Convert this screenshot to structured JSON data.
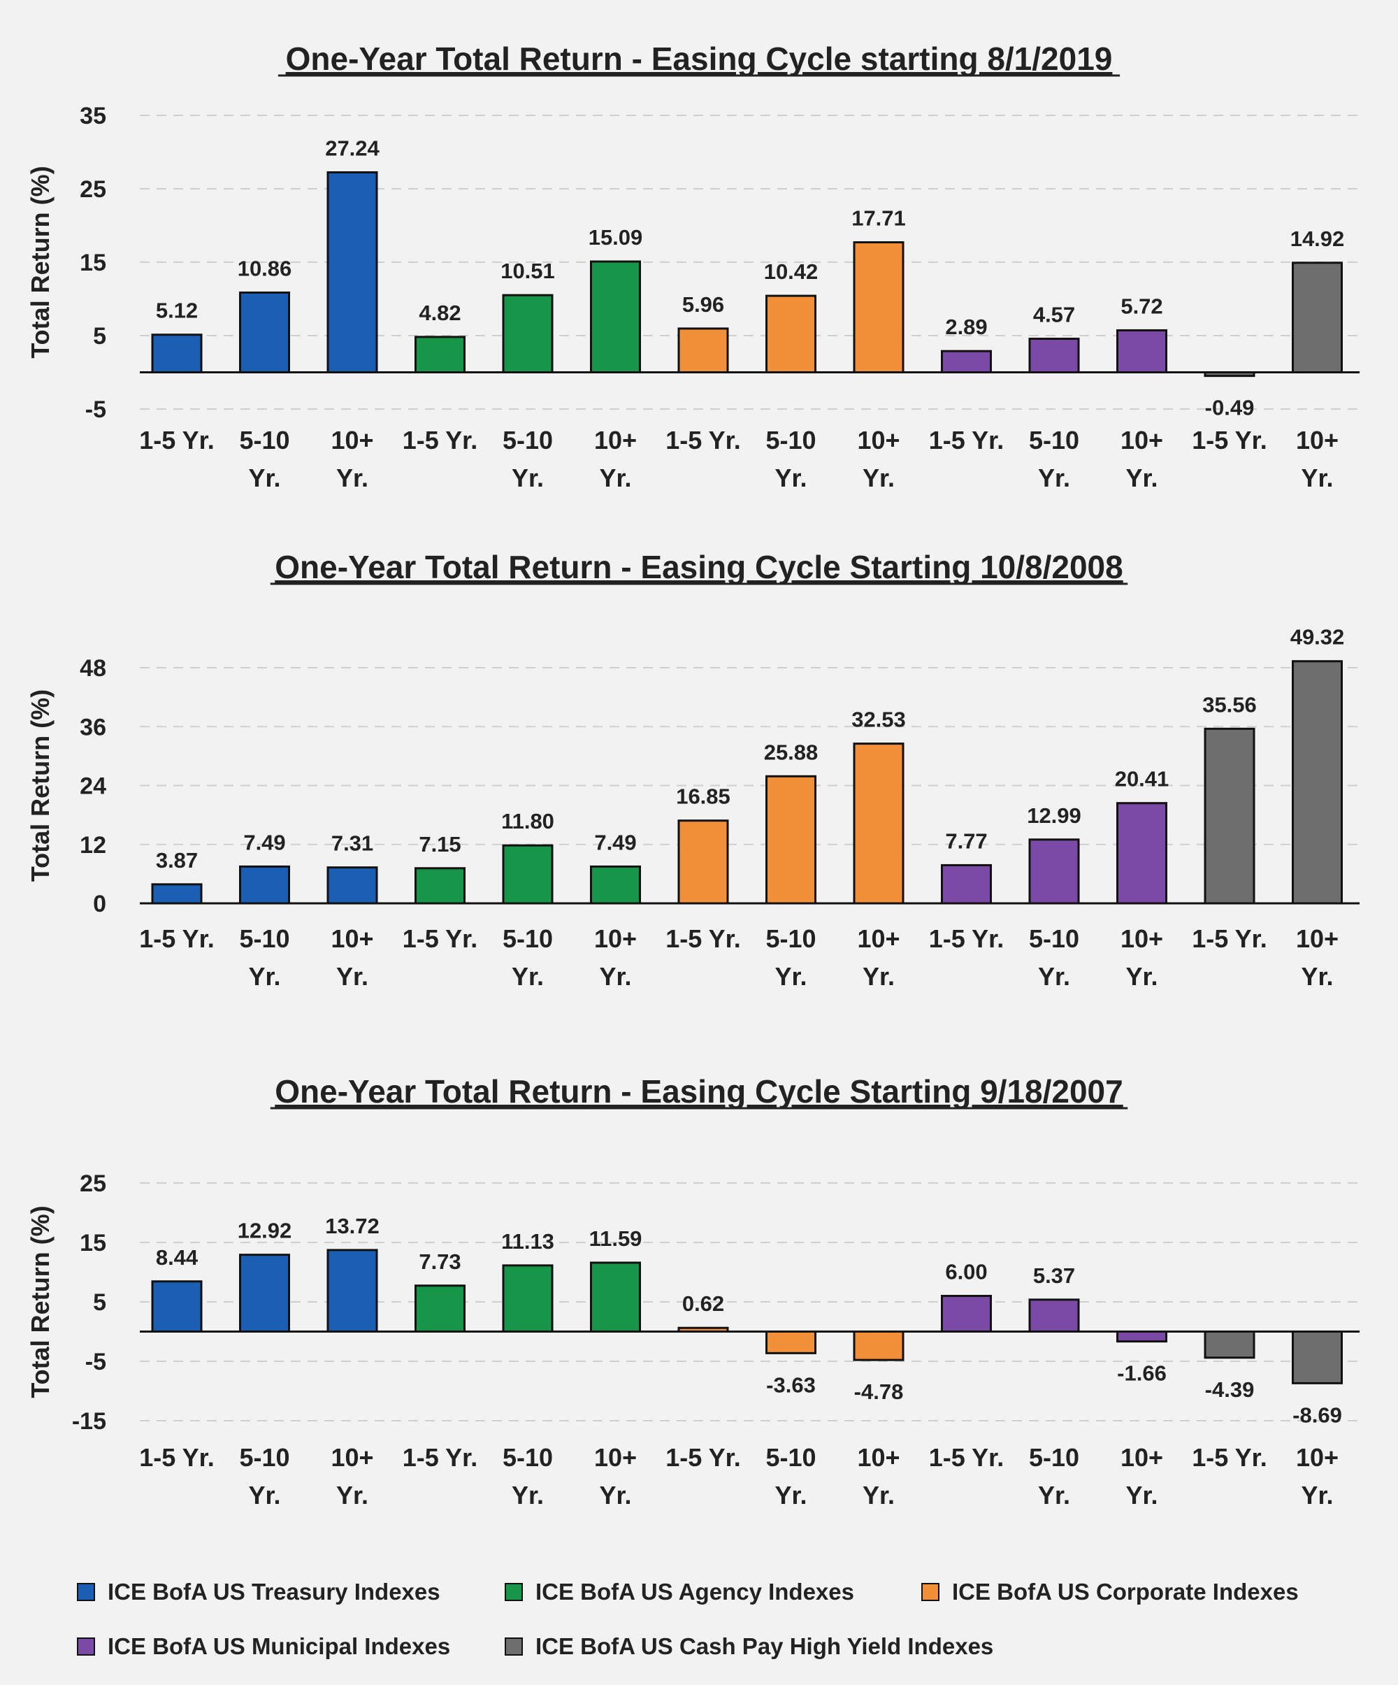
{
  "chart_data": [
    {
      "type": "bar",
      "title": "One-Year Total Return - Easing Cycle starting 8/1/2019",
      "ylabel": "Total Return (%)",
      "xlabel": "",
      "yticks": [
        35,
        25,
        15,
        5,
        -5
      ],
      "ylim": [
        -10,
        38
      ],
      "grid": true,
      "categories": [
        "1-5 Yr.",
        "5-10 Yr.",
        "10+ Yr.",
        "1-5 Yr.",
        "5-10 Yr.",
        "10+ Yr.",
        "1-5 Yr.",
        "5-10 Yr.",
        "10+ Yr.",
        "1-5 Yr.",
        "5-10 Yr.",
        "10+ Yr.",
        "1-5 Yr.",
        "10+ Yr."
      ],
      "values": [
        5.12,
        10.86,
        27.24,
        4.82,
        10.51,
        15.09,
        5.96,
        10.42,
        17.71,
        2.89,
        4.57,
        5.72,
        -0.49,
        14.92
      ],
      "value_labels": [
        "5.12",
        "10.86",
        "27.24",
        "4.82",
        "10.51",
        "15.09",
        "5.96",
        "10.42",
        "17.71",
        "2.89",
        "4.57",
        "5.72",
        "-0.49",
        "14.92"
      ],
      "groups": [
        "treasury",
        "treasury",
        "treasury",
        "agency",
        "agency",
        "agency",
        "corporate",
        "corporate",
        "corporate",
        "municipal",
        "municipal",
        "municipal",
        "high_yield",
        "high_yield"
      ]
    },
    {
      "type": "bar",
      "title": "One-Year Total Return - Easing Cycle Starting 10/8/2008",
      "ylabel": "Total Return (%)",
      "xlabel": "",
      "yticks": [
        48,
        36,
        24,
        12,
        0
      ],
      "ylim": [
        0,
        52
      ],
      "grid": true,
      "categories": [
        "1-5 Yr.",
        "5-10 Yr.",
        "10+ Yr.",
        "1-5 Yr.",
        "5-10 Yr.",
        "10+ Yr.",
        "1-5 Yr.",
        "5-10 Yr.",
        "10+ Yr.",
        "1-5 Yr.",
        "5-10 Yr.",
        "10+ Yr.",
        "1-5 Yr.",
        "10+ Yr."
      ],
      "values": [
        3.87,
        7.49,
        7.31,
        7.15,
        11.8,
        7.49,
        16.85,
        25.88,
        32.53,
        7.77,
        12.99,
        20.41,
        35.56,
        49.32
      ],
      "value_labels": [
        "3.87",
        "7.49",
        "7.31",
        "7.15",
        "11.80",
        "7.49",
        "16.85",
        "25.88",
        "32.53",
        "7.77",
        "12.99",
        "20.41",
        "35.56",
        "49.32"
      ],
      "groups": [
        "treasury",
        "treasury",
        "treasury",
        "agency",
        "agency",
        "agency",
        "corporate",
        "corporate",
        "corporate",
        "municipal",
        "municipal",
        "municipal",
        "high_yield",
        "high_yield"
      ]
    },
    {
      "type": "bar",
      "title": "One-Year Total Return - Easing Cycle Starting 9/18/2007",
      "ylabel": "Total Return (%)",
      "xlabel": "",
      "yticks": [
        25,
        15,
        5,
        -5,
        -15
      ],
      "ylim": [
        -18,
        27
      ],
      "grid": true,
      "categories": [
        "1-5 Yr.",
        "5-10 Yr.",
        "10+ Yr.",
        "1-5 Yr.",
        "5-10 Yr.",
        "10+ Yr.",
        "1-5 Yr.",
        "5-10 Yr.",
        "10+ Yr.",
        "1-5 Yr.",
        "5-10 Yr.",
        "10+ Yr.",
        "1-5 Yr.",
        "10+ Yr."
      ],
      "values": [
        8.44,
        12.92,
        13.72,
        7.73,
        11.13,
        11.59,
        0.62,
        -3.63,
        -4.78,
        6.0,
        5.37,
        -1.66,
        -4.39,
        -8.69
      ],
      "value_labels": [
        "8.44",
        "12.92",
        "13.72",
        "7.73",
        "11.13",
        "11.59",
        "0.62",
        "-3.63",
        "-4.78",
        "6.00",
        "5.37",
        "-1.66",
        "-4.39",
        "-8.69"
      ],
      "groups": [
        "treasury",
        "treasury",
        "treasury",
        "agency",
        "agency",
        "agency",
        "corporate",
        "corporate",
        "corporate",
        "municipal",
        "municipal",
        "municipal",
        "high_yield",
        "high_yield"
      ]
    }
  ],
  "legend": {
    "placement": "bottom",
    "items": [
      {
        "key": "treasury",
        "label": "ICE BofA US Treasury Indexes",
        "color": "#1a5fb4"
      },
      {
        "key": "agency",
        "label": "ICE BofA US Agency Indexes",
        "color": "#17964a"
      },
      {
        "key": "corporate",
        "label": "ICE BofA US Corporate Indexes",
        "color": "#f2903a"
      },
      {
        "key": "municipal",
        "label": "ICE BofA US Municipal Indexes",
        "color": "#7a4aa6"
      },
      {
        "key": "high_yield",
        "label": "ICE BofA US Cash Pay High Yield Indexes",
        "color": "#6e6e6e"
      }
    ]
  }
}
